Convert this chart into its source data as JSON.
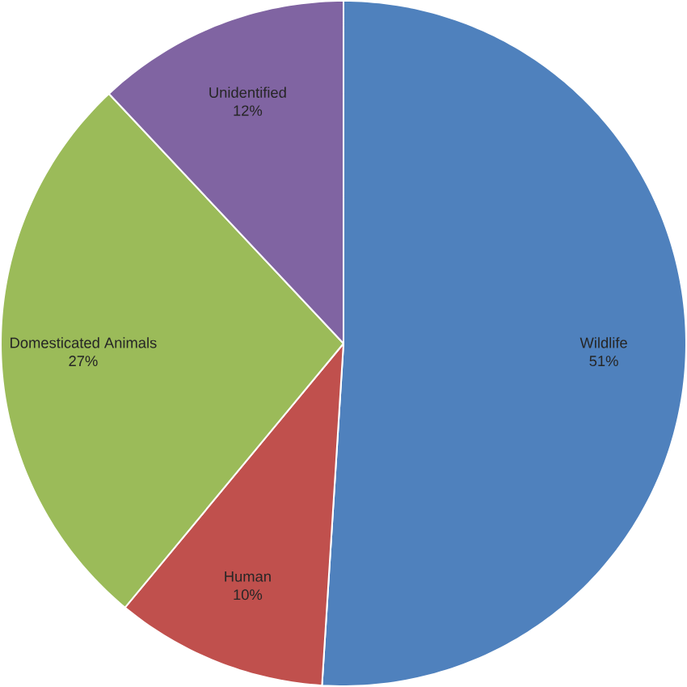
{
  "chart_data": {
    "type": "pie",
    "categories": [
      "Wildlife",
      "Human",
      "Domesticated Animals",
      "Unidentified"
    ],
    "values": [
      51,
      10,
      27,
      12
    ],
    "colors": [
      "#4f81bd",
      "#c0504d",
      "#9bbb59",
      "#8064a2"
    ],
    "value_labels": [
      "51%",
      "10%",
      "27%",
      "12%"
    ]
  }
}
